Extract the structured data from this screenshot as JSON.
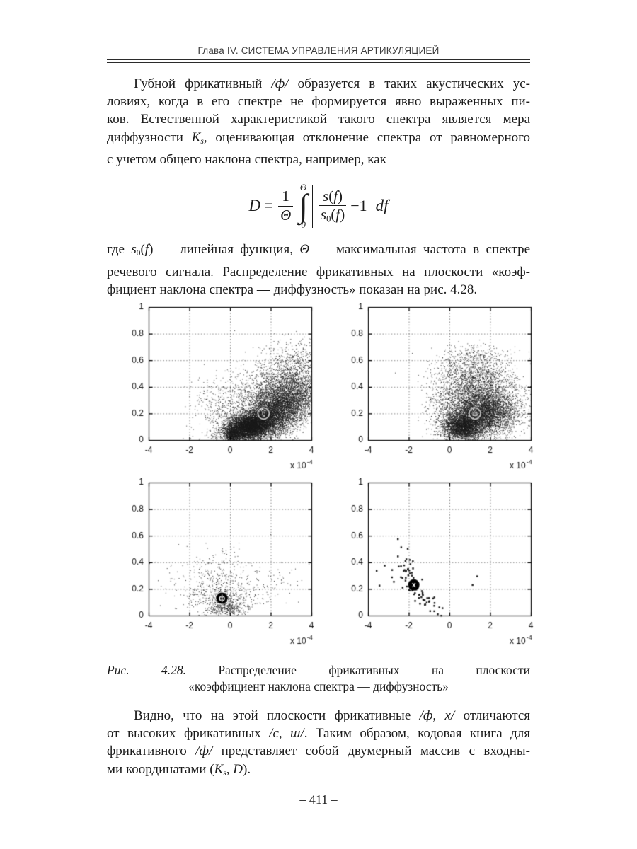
{
  "page": {
    "running_head": "Глава IV. СИСТЕМА УПРАВЛЕНИЯ АРТИКУЛЯЦИЕЙ",
    "page_number": "– 411 –"
  },
  "colors": {
    "ink": "#1a1a1a",
    "grid": "#848484",
    "ring": "#c9c9c9",
    "ring_letter": "#d8d8d8",
    "solid_marker": "#000000",
    "solid_letter": "#ffffff",
    "page_bg": "#ffffff"
  },
  "paragraphs": {
    "p1": {
      "indent_first": true,
      "lines": [
        [
          {
            "t": "Губной фрикативный "
          },
          {
            "t": "/ф/",
            "i": 1
          },
          {
            "t": " образуется в таких акустических ус-"
          }
        ],
        [
          {
            "t": "ловиях, когда в его спектре не формируется явно выраженных пи-"
          }
        ],
        [
          {
            "t": "ков. Естественной характеристикой такого спектра является мера"
          }
        ],
        [
          {
            "t": "диффузности "
          },
          {
            "t": "K",
            "i": 1
          },
          {
            "t": "s",
            "i": 1,
            "sub": 1
          },
          {
            "t": ", оценивающая отклонение спектра от равномерного"
          }
        ],
        [
          {
            "t": "с учетом общего наклона спектра, например, как"
          }
        ]
      ]
    },
    "p2": {
      "indent_first": false,
      "lines": [
        [
          {
            "t": "где "
          },
          {
            "t": "s",
            "i": 1
          },
          {
            "t": "0",
            "sub": 1
          },
          {
            "t": "("
          },
          {
            "t": "f",
            "i": 1
          },
          {
            "t": ") — линейная функция, "
          },
          {
            "t": "Θ",
            "i": 1
          },
          {
            "t": " — максимальная частота в спектре"
          }
        ],
        [
          {
            "t": "речевого сигнала. Распределение фрикативных на плоскости «коэф-"
          }
        ],
        [
          {
            "t": "фициент наклона спектра — диффузность» показан на рис. 4.28."
          }
        ]
      ]
    },
    "p3": {
      "indent_first": true,
      "lines": [
        [
          {
            "t": "Видно, что на этой плоскости фрикативные "
          },
          {
            "t": "/ф, х/",
            "i": 1
          },
          {
            "t": " отличаются"
          }
        ],
        [
          {
            "t": "от высоких фрикативных "
          },
          {
            "t": "/с, ш/",
            "i": 1
          },
          {
            "t": ". Таким образом, кодовая книга для"
          }
        ],
        [
          {
            "t": "фрикативного "
          },
          {
            "t": "/ф/",
            "i": 1
          },
          {
            "t": " представляет собой двумерный массив с входны-"
          }
        ],
        [
          {
            "t": "ми координатами ("
          },
          {
            "t": "K",
            "i": 1
          },
          {
            "t": "s",
            "i": 1,
            "sub": 1
          },
          {
            "t": ", "
          },
          {
            "t": "D",
            "i": 1
          },
          {
            "t": ")."
          }
        ]
      ]
    }
  },
  "caption": {
    "indent_first": false,
    "lines": [
      [
        {
          "t": "Рис. 4.28.",
          "i": 1
        },
        {
          "t": " Распределение фрикативных на плоскости"
        }
      ],
      [
        {
          "t": "«коэффициент наклона спектра — диффузность»"
        }
      ]
    ]
  },
  "formula": {
    "lhs": "D",
    "eq": "=",
    "coef_num": "1",
    "coef_den": "Θ",
    "int_upper": "Θ",
    "int_sym": "∫",
    "int_lower": "0",
    "num2": [
      {
        "t": "s",
        "i": 1
      },
      {
        "t": "("
      },
      {
        "t": "f",
        "i": 1
      },
      {
        "t": ")"
      }
    ],
    "den2": [
      {
        "t": "s",
        "i": 1
      },
      {
        "t": "0",
        "sub": 1
      },
      {
        "t": "("
      },
      {
        "t": "f",
        "i": 1
      },
      {
        "t": ")"
      }
    ],
    "minus": "−1",
    "tail": "df"
  },
  "chart_data": [
    {
      "type": "scatter",
      "phoneme": "с",
      "position": "top-left",
      "xlim": [
        -4,
        4
      ],
      "ylim": [
        0,
        1
      ],
      "xticks": [
        -4,
        -2,
        0,
        2,
        4
      ],
      "xtick_labels": [
        "-4",
        "-2",
        "0",
        "2",
        "4"
      ],
      "yticks": [
        0,
        0.2,
        0.4,
        0.6,
        0.8,
        1
      ],
      "ytick_labels": [
        "0",
        "0.2",
        "0.4",
        "0.6",
        "0.8",
        "1"
      ],
      "scale_label": "x 10",
      "scale_exp": "-4",
      "grid": true,
      "legend": "none",
      "title": "",
      "seed": 101,
      "dot": 1,
      "alpha": 0.85,
      "clusters": [
        {
          "n": 5500,
          "cx": 0.9,
          "cy": 0.1,
          "sx": 0.6,
          "sy": 0.05,
          "slope": 0.03
        },
        {
          "n": 4500,
          "cx": 2.1,
          "cy": 0.19,
          "sx": 0.95,
          "sy": 0.09,
          "slope": 0.06
        },
        {
          "n": 2600,
          "cx": 2.7,
          "cy": 0.33,
          "sx": 0.9,
          "sy": 0.11,
          "slope": 0.05
        },
        {
          "n": 900,
          "cx": 1.1,
          "cy": 0.32,
          "sx": 1.2,
          "sy": 0.13,
          "slope": 0.06
        },
        {
          "n": 350,
          "cx": 3.2,
          "cy": 0.52,
          "sx": 0.7,
          "sy": 0.09,
          "slope": 0.05
        },
        {
          "n": 140,
          "cx": 3.0,
          "cy": 0.64,
          "sx": 0.8,
          "sy": 0.06,
          "slope": 0
        },
        {
          "n": 130,
          "cx": -0.9,
          "cy": 0.28,
          "sx": 0.55,
          "sy": 0.11,
          "slope": 0
        },
        {
          "n": 420,
          "cx": 0.1,
          "cy": 0.04,
          "sx": 0.18,
          "sy": 0.03,
          "slope": 0
        }
      ],
      "centroid": {
        "x": 1.65,
        "y": 0.2,
        "label": "с",
        "style": "ring"
      }
    },
    {
      "type": "scatter",
      "phoneme": "ш",
      "position": "top-right",
      "xlim": [
        -4,
        4
      ],
      "ylim": [
        0,
        1
      ],
      "xticks": [
        -4,
        -2,
        0,
        2,
        4
      ],
      "xtick_labels": [
        "-4",
        "-2",
        "0",
        "2",
        "4"
      ],
      "yticks": [
        0,
        0.2,
        0.4,
        0.6,
        0.8,
        1
      ],
      "ytick_labels": [
        "0",
        "0.2",
        "0.4",
        "0.6",
        "0.8",
        "1"
      ],
      "scale_label": "x 10",
      "scale_exp": "-4",
      "grid": true,
      "legend": "none",
      "title": "",
      "seed": 202,
      "dot": 1,
      "alpha": 0.85,
      "clusters": [
        {
          "n": 3000,
          "cx": 0.65,
          "cy": 0.1,
          "sx": 0.5,
          "sy": 0.05,
          "slope": 0
        },
        {
          "n": 3600,
          "cx": 1.7,
          "cy": 0.2,
          "sx": 0.8,
          "sy": 0.08,
          "slope": 0
        },
        {
          "n": 2300,
          "cx": 1.4,
          "cy": 0.33,
          "sx": 1.0,
          "sy": 0.11,
          "slope": 0
        },
        {
          "n": 700,
          "cx": 1.1,
          "cy": 0.53,
          "sx": 0.9,
          "sy": 0.08,
          "slope": 0
        },
        {
          "n": 260,
          "cx": -0.2,
          "cy": 0.24,
          "sx": 0.5,
          "sy": 0.12,
          "slope": 0
        },
        {
          "n": 90,
          "cx": 1.4,
          "cy": 0.66,
          "sx": 0.7,
          "sy": 0.035,
          "slope": 0
        },
        {
          "n": 70,
          "cx": 3.3,
          "cy": 0.3,
          "sx": 0.45,
          "sy": 0.1,
          "slope": 0
        },
        {
          "n": 1,
          "cx": -2.7,
          "cy": 0.5,
          "sx": 0.01,
          "sy": 0.01,
          "slope": 0
        }
      ],
      "centroid": {
        "x": 1.25,
        "y": 0.2,
        "label": "ш",
        "style": "ring"
      }
    },
    {
      "type": "scatter",
      "phoneme": "ф",
      "position": "bottom-left",
      "xlim": [
        -4,
        4
      ],
      "ylim": [
        0,
        1
      ],
      "xticks": [
        -4,
        -2,
        0,
        2,
        4
      ],
      "xtick_labels": [
        "-4",
        "-2",
        "0",
        "2",
        "4"
      ],
      "yticks": [
        0,
        0.2,
        0.4,
        0.6,
        0.8,
        1
      ],
      "ytick_labels": [
        "0",
        "0.2",
        "0.4",
        "0.6",
        "0.8",
        "1"
      ],
      "scale_label": "x 10",
      "scale_exp": "-4",
      "grid": true,
      "legend": "none",
      "title": "",
      "seed": 303,
      "dot": 1,
      "alpha": 0.9,
      "clusters": [
        {
          "n": 400,
          "cx": -0.15,
          "cy": 0.06,
          "sx": 0.45,
          "sy": 0.04,
          "slope": 0
        },
        {
          "n": 380,
          "cx": -0.55,
          "cy": 0.16,
          "sx": 0.85,
          "sy": 0.08,
          "slope": 0
        },
        {
          "n": 170,
          "cx": -0.7,
          "cy": 0.3,
          "sx": 1.1,
          "sy": 0.09,
          "slope": 0
        },
        {
          "n": 70,
          "cx": 1.2,
          "cy": 0.18,
          "sx": 1.0,
          "sy": 0.1,
          "slope": 0
        },
        {
          "n": 25,
          "cx": 2.4,
          "cy": 0.25,
          "sx": 0.6,
          "sy": 0.1,
          "slope": 0
        },
        {
          "n": 15,
          "cx": -2.8,
          "cy": 0.33,
          "sx": 0.5,
          "sy": 0.09,
          "slope": 0
        },
        {
          "n": 12,
          "cx": 0.0,
          "cy": 0.49,
          "sx": 0.9,
          "sy": 0.045,
          "slope": 0
        }
      ],
      "centroid": {
        "x": -0.4,
        "y": 0.13,
        "label": "ф",
        "style": "solid"
      }
    },
    {
      "type": "scatter",
      "phoneme": "х",
      "position": "bottom-right",
      "xlim": [
        -4,
        4
      ],
      "ylim": [
        0,
        1
      ],
      "xticks": [
        -4,
        -2,
        0,
        2,
        4
      ],
      "xtick_labels": [
        "-4",
        "-2",
        "0",
        "2",
        "4"
      ],
      "yticks": [
        0,
        0.2,
        0.4,
        0.6,
        0.8,
        1
      ],
      "ytick_labels": [
        "0",
        "0.2",
        "0.4",
        "0.6",
        "0.8",
        "1"
      ],
      "scale_label": "x 10",
      "scale_exp": "-4",
      "grid": true,
      "legend": "none",
      "title": "",
      "seed": 404,
      "dot": 2.4,
      "alpha": 1,
      "clusters": [
        {
          "n": 44,
          "cx": -1.35,
          "cy": 0.13,
          "sx": 0.5,
          "sy": 0.035,
          "slope": -0.12
        },
        {
          "n": 30,
          "cx": -2.0,
          "cy": 0.34,
          "sx": 0.42,
          "sy": 0.06,
          "slope": -0.18
        },
        {
          "n": 6,
          "cx": -3.0,
          "cy": 0.28,
          "sx": 0.45,
          "sy": 0.07,
          "slope": 0
        },
        {
          "n": 2,
          "cx": 1.3,
          "cy": 0.26,
          "sx": 0.12,
          "sy": 0.055,
          "slope": 0
        }
      ],
      "centroid": {
        "x": -1.75,
        "y": 0.23,
        "label": "х",
        "style": "solid"
      }
    }
  ]
}
